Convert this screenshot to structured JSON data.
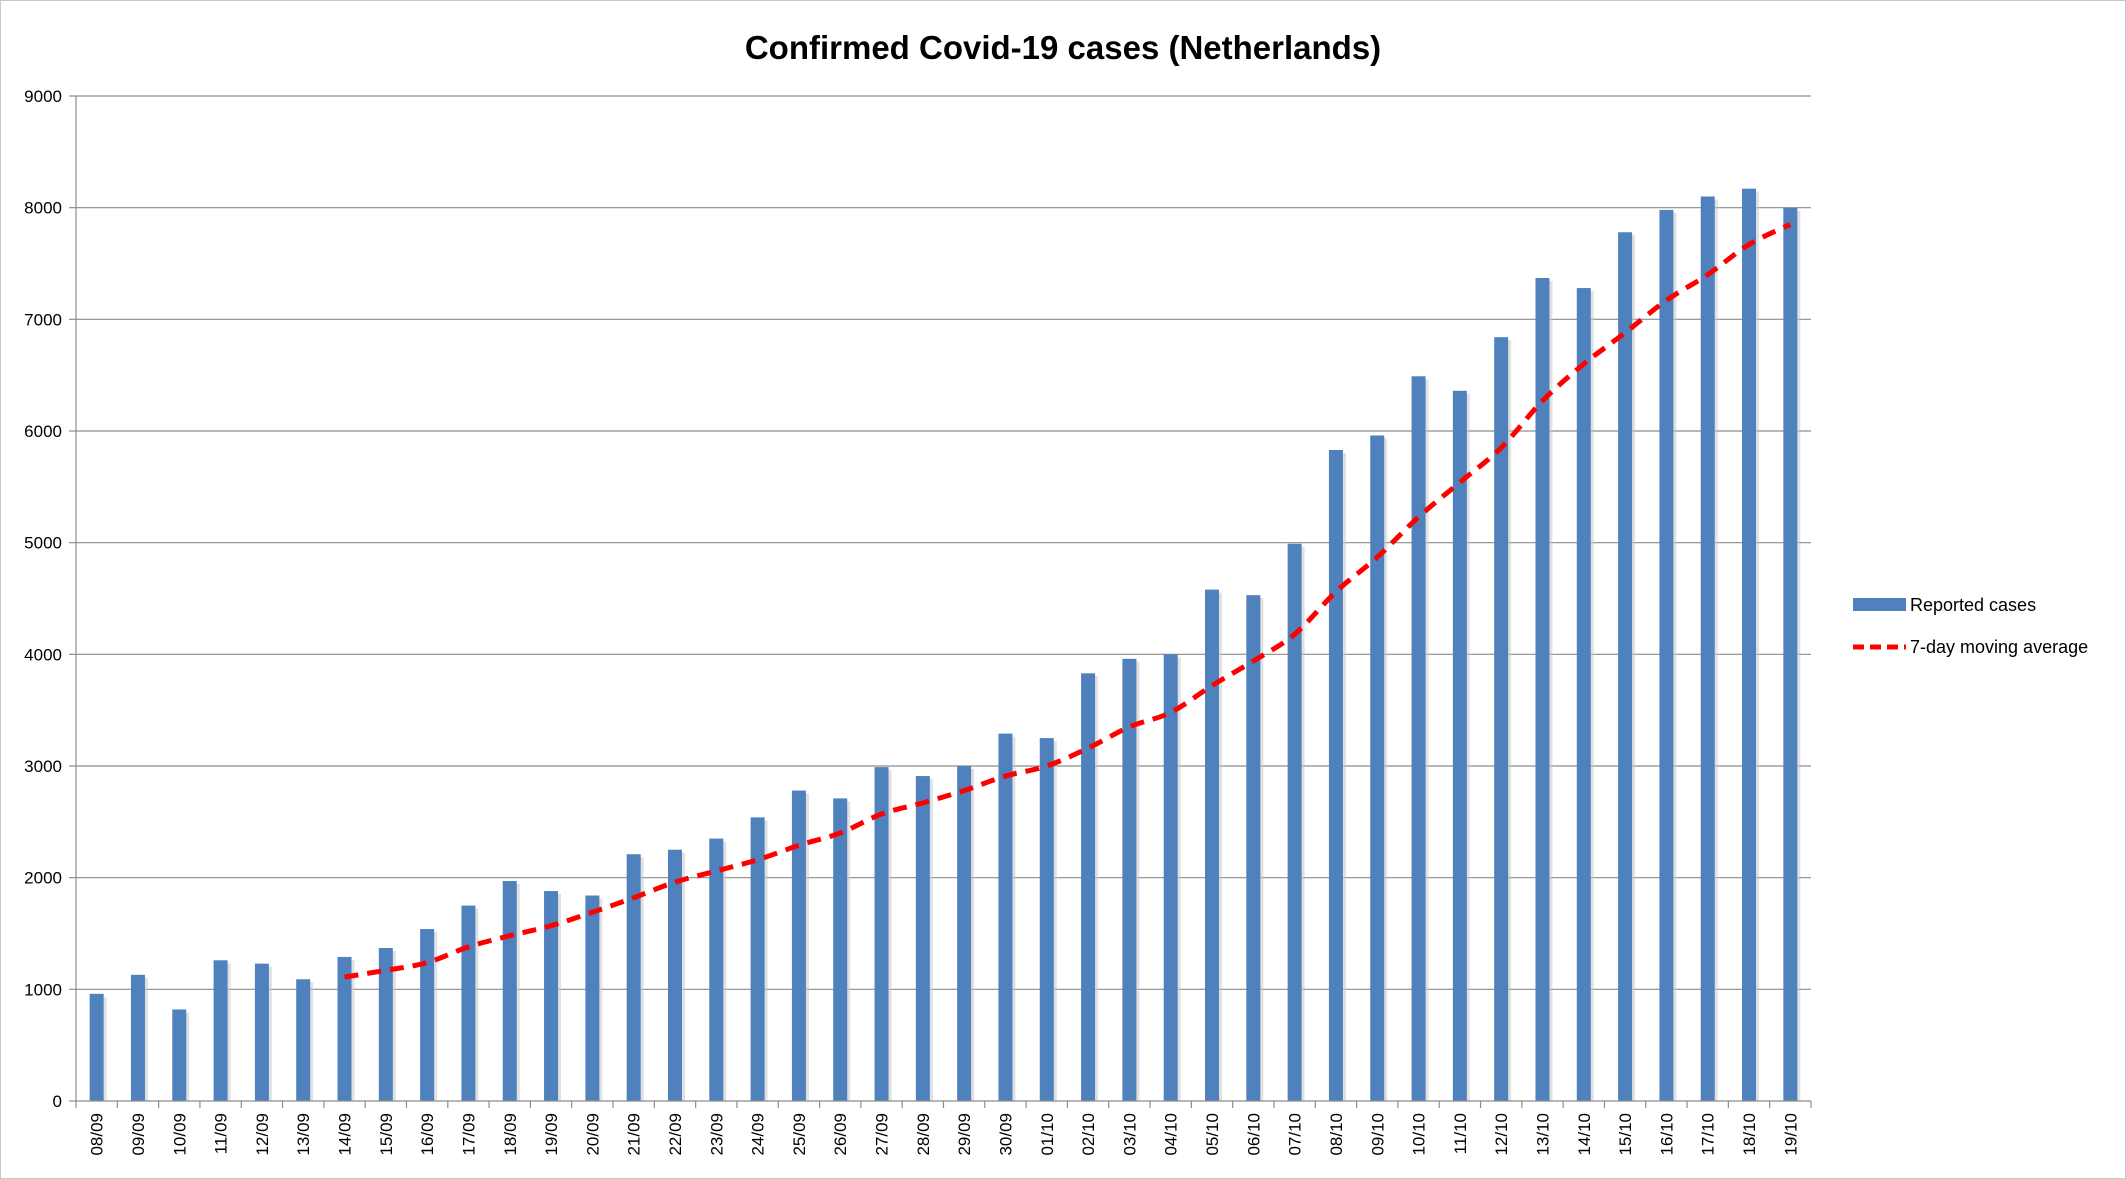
{
  "chart_data": {
    "type": "bar",
    "title": "Confirmed Covid-19 cases (Netherlands)",
    "xlabel": "",
    "ylabel": "",
    "ylim": [
      0,
      9000
    ],
    "yticks": [
      0,
      1000,
      2000,
      3000,
      4000,
      5000,
      6000,
      7000,
      8000,
      9000
    ],
    "grid": true,
    "legend_position": "right",
    "categories": [
      "08/09",
      "09/09",
      "10/09",
      "11/09",
      "12/09",
      "13/09",
      "14/09",
      "15/09",
      "16/09",
      "17/09",
      "18/09",
      "19/09",
      "20/09",
      "21/09",
      "22/09",
      "23/09",
      "24/09",
      "25/09",
      "26/09",
      "27/09",
      "28/09",
      "29/09",
      "30/09",
      "01/10",
      "02/10",
      "03/10",
      "04/10",
      "05/10",
      "06/10",
      "07/10",
      "08/10",
      "09/10",
      "10/10",
      "11/10",
      "12/10",
      "13/10",
      "14/10",
      "15/10",
      "16/10",
      "17/10",
      "18/10",
      "19/10"
    ],
    "series": [
      {
        "name": "Reported cases",
        "type": "bar",
        "color": "#4f81bd",
        "values": [
          960,
          1130,
          820,
          1260,
          1230,
          1090,
          1290,
          1370,
          1540,
          1750,
          1970,
          1880,
          1840,
          2210,
          2250,
          2350,
          2540,
          2780,
          2710,
          2990,
          2910,
          3000,
          3290,
          3250,
          3830,
          3960,
          4000,
          4580,
          4530,
          4990,
          5830,
          5960,
          6490,
          6360,
          6840,
          7370,
          7280,
          7780,
          7980,
          8100,
          8170,
          8000
        ]
      },
      {
        "name": "7-day moving average",
        "type": "line",
        "color": "#ff0000",
        "style": "dashed",
        "values": [
          null,
          null,
          null,
          null,
          null,
          null,
          1110,
          1170,
          1240,
          1380,
          1480,
          1570,
          1690,
          1820,
          1960,
          2060,
          2160,
          2290,
          2400,
          2570,
          2670,
          2780,
          2910,
          3000,
          3160,
          3350,
          3480,
          3720,
          3940,
          4180,
          4560,
          4870,
          5230,
          5540,
          5850,
          6270,
          6600,
          6880,
          7170,
          7400,
          7670,
          7850
        ]
      }
    ]
  }
}
